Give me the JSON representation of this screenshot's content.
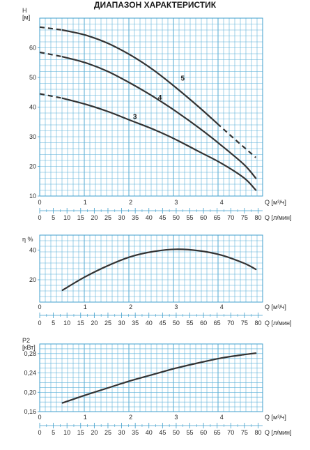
{
  "title": "ДИАПАЗОН ХАРАКТЕРИСТИК",
  "chart_data": [
    {
      "type": "line",
      "name": "head",
      "ylabel": "H",
      "yunit": "[м]",
      "xlabel": "Q",
      "xunit": "[м³/ч]",
      "x2unit": "[л/мин]",
      "xlim": [
        0,
        4.9
      ],
      "ylim": [
        10,
        70
      ],
      "xticks": [
        "0",
        "1",
        "2",
        "3",
        "4"
      ],
      "yticks": [
        "10",
        "20",
        "30",
        "40",
        "50",
        "60"
      ],
      "x2ticks": [
        "0",
        "5",
        "10",
        "15",
        "20",
        "25",
        "30",
        "35",
        "40",
        "45",
        "50",
        "55",
        "60",
        "65",
        "70",
        "75",
        "80"
      ],
      "series": [
        {
          "name": "5",
          "dash_head": [
            [
              0,
              67
            ],
            [
              0.5,
              66
            ]
          ],
          "solid": [
            [
              0.5,
              66
            ],
            [
              1,
              64.3
            ],
            [
              1.5,
              61.5
            ],
            [
              2,
              57.5
            ],
            [
              2.5,
              52.5
            ],
            [
              3,
              46.5
            ],
            [
              3.5,
              40
            ],
            [
              3.9,
              34.5
            ]
          ],
          "dash_tail": [
            [
              3.9,
              34.5
            ],
            [
              4.3,
              29
            ],
            [
              4.75,
              23
            ]
          ],
          "label_at": [
            3.1,
            49
          ]
        },
        {
          "name": "4",
          "dash_head": [
            [
              0,
              58.5
            ],
            [
              0.5,
              57
            ]
          ],
          "solid": [
            [
              0.5,
              57
            ],
            [
              1,
              55
            ],
            [
              1.5,
              52
            ],
            [
              2,
              48
            ],
            [
              2.5,
              43.5
            ],
            [
              3,
              38.5
            ],
            [
              3.5,
              33
            ],
            [
              4,
              27
            ],
            [
              4.5,
              20.5
            ],
            [
              4.75,
              16
            ]
          ],
          "dash_tail": [],
          "label_at": [
            2.6,
            42.5
          ]
        },
        {
          "name": "3",
          "dash_head": [
            [
              0,
              44.5
            ],
            [
              0.5,
              43
            ]
          ],
          "solid": [
            [
              0.5,
              43
            ],
            [
              1,
              41
            ],
            [
              1.5,
              38.5
            ],
            [
              2,
              35.5
            ],
            [
              2.5,
              32.5
            ],
            [
              3,
              29
            ],
            [
              3.5,
              25
            ],
            [
              4,
              21
            ],
            [
              4.5,
              16
            ],
            [
              4.75,
              12
            ]
          ],
          "dash_tail": [],
          "label_at": [
            2.05,
            36
          ]
        }
      ]
    },
    {
      "type": "line",
      "name": "efficiency",
      "ylabel": "η %",
      "xlabel": "Q",
      "xunit": "[м³/ч]",
      "x2unit": "[л/мин]",
      "xlim": [
        0,
        4.9
      ],
      "ylim": [
        5,
        50
      ],
      "xticks": [
        "0",
        "1",
        "2",
        "3",
        "4"
      ],
      "yticks": [
        "20",
        "40"
      ],
      "x2ticks": [
        "0",
        "5",
        "10",
        "15",
        "20",
        "25",
        "30",
        "35",
        "40",
        "45",
        "50",
        "55",
        "60",
        "65",
        "70",
        "75",
        "80"
      ],
      "series": [
        {
          "solid": [
            [
              0.5,
              13
            ],
            [
              1,
              22
            ],
            [
              1.5,
              29.5
            ],
            [
              2,
              35.5
            ],
            [
              2.5,
              39
            ],
            [
              3,
              40.5
            ],
            [
              3.5,
              39.5
            ],
            [
              4,
              36.5
            ],
            [
              4.5,
              31
            ],
            [
              4.75,
              27
            ]
          ]
        }
      ]
    },
    {
      "type": "line",
      "name": "power",
      "ylabel": "P2",
      "yunit": "[кВт]",
      "xlabel": "Q",
      "xunit": "[м³/ч]",
      "x2unit": "[л/мин]",
      "xlim": [
        0,
        4.9
      ],
      "ylim": [
        0.16,
        0.3
      ],
      "xticks": [
        "0",
        "1",
        "2",
        "3",
        "4"
      ],
      "yticks": [
        "0,16",
        "0,20",
        "0,24",
        "0,28"
      ],
      "x2ticks": [
        "0",
        "5",
        "10",
        "15",
        "20",
        "25",
        "30",
        "35",
        "40",
        "45",
        "50",
        "55",
        "60",
        "65",
        "70",
        "75",
        "80"
      ],
      "series": [
        {
          "solid": [
            [
              0.5,
              0.178
            ],
            [
              1,
              0.194
            ],
            [
              1.5,
              0.209
            ],
            [
              2,
              0.224
            ],
            [
              2.5,
              0.237
            ],
            [
              3,
              0.25
            ],
            [
              3.5,
              0.261
            ],
            [
              4,
              0.271
            ],
            [
              4.5,
              0.278
            ],
            [
              4.75,
              0.281
            ]
          ]
        }
      ]
    }
  ]
}
